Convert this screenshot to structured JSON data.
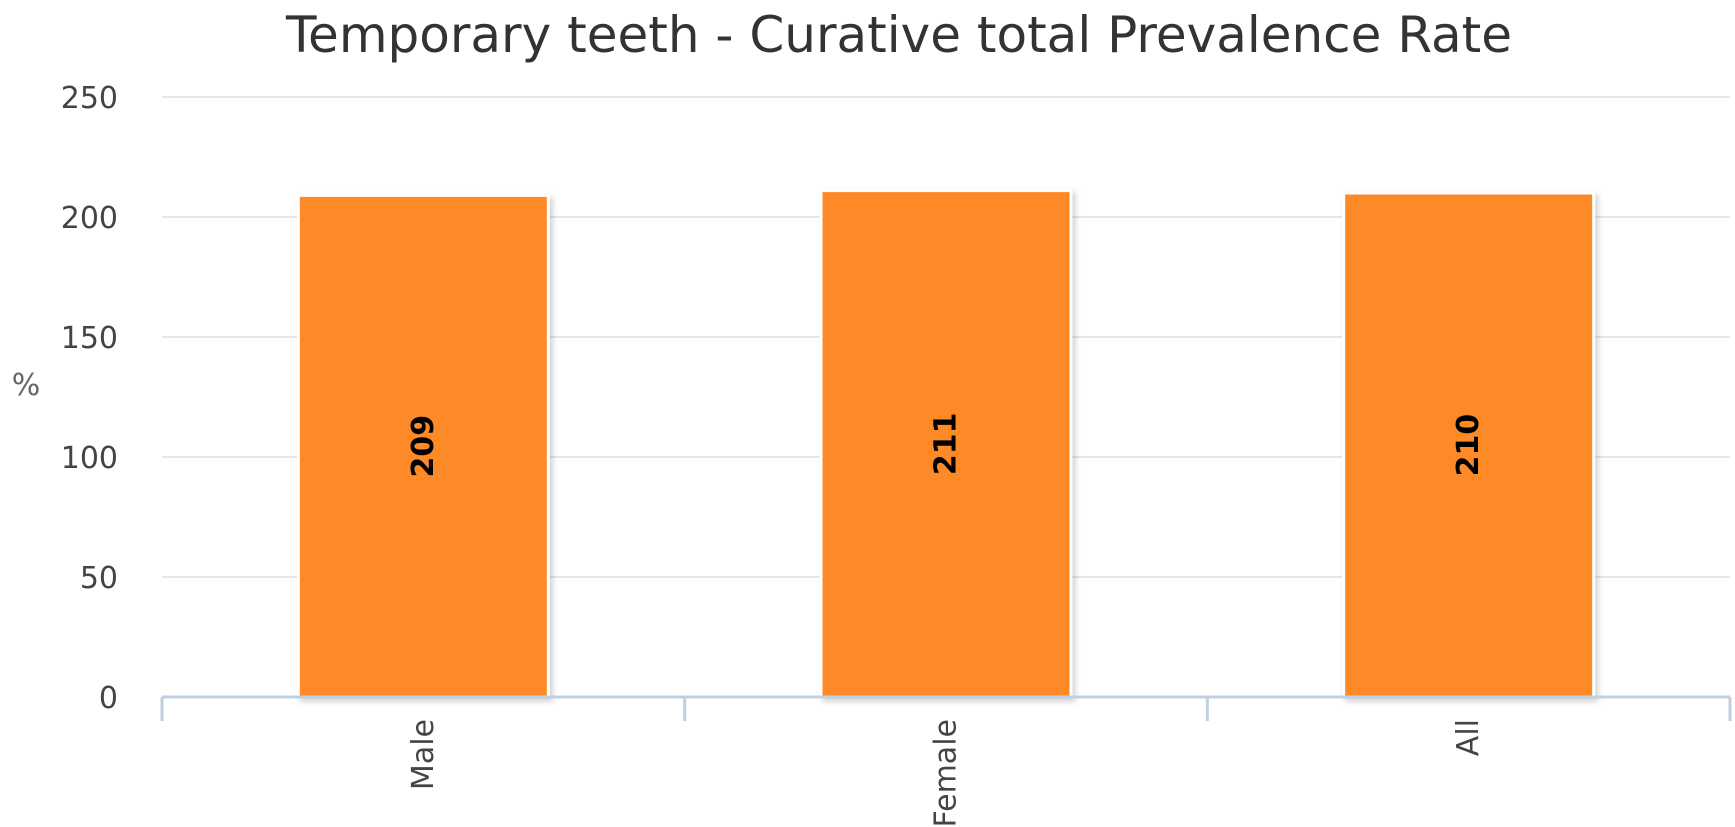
{
  "chart_data": {
    "type": "bar",
    "title": "Temporary teeth - Curative total Prevalence Rate",
    "xlabel": "",
    "ylabel": "%",
    "categories": [
      "Male",
      "Female",
      "All"
    ],
    "values": [
      209,
      211,
      210
    ],
    "data_labels": [
      "209",
      "211",
      "210"
    ],
    "ylim": [
      0,
      250
    ],
    "yticks": [
      0,
      50,
      100,
      150,
      200,
      250
    ],
    "ytick_labels": [
      "0",
      "50",
      "100",
      "150",
      "200",
      "250"
    ],
    "grid": true,
    "legend": "none",
    "colors": {
      "bar": "#fd8a28",
      "grid": "#e6e6e6",
      "axis": "#c0d0e0"
    }
  }
}
